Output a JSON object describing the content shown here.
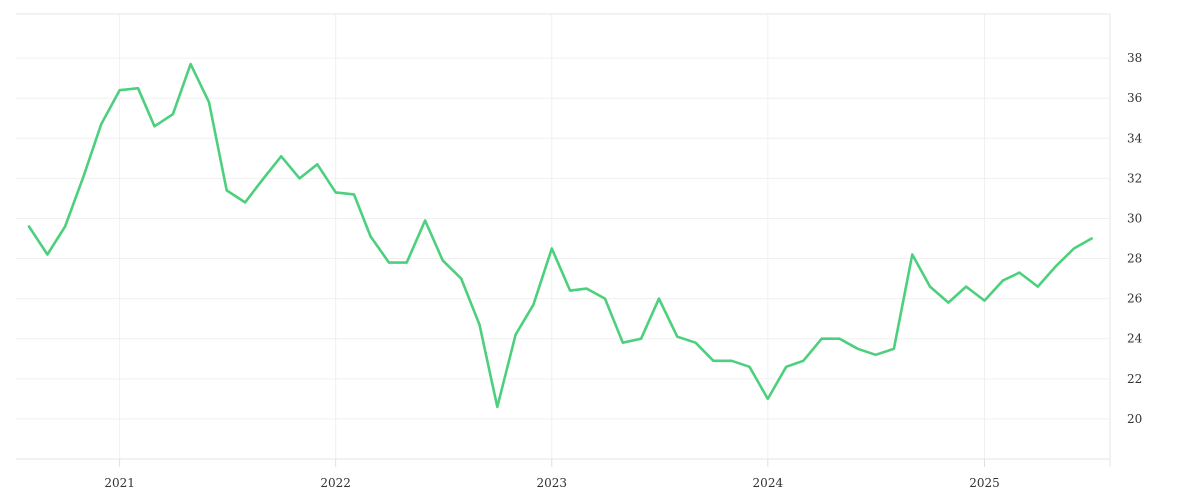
{
  "chart_data": {
    "type": "line",
    "title": "",
    "xlabel": "",
    "ylabel": "",
    "y_axis_side": "right",
    "grid": true,
    "legend": "none",
    "line_color": "#4cd07d",
    "x_tick_labels": [
      "2021",
      "2022",
      "2023",
      "2024",
      "2025"
    ],
    "y_tick_labels": [
      "20",
      "22",
      "24",
      "26",
      "28",
      "30",
      "32",
      "34",
      "36",
      "38"
    ],
    "ylim": [
      18.0,
      40.2
    ],
    "xlim": [
      "2020-07-10",
      "2025-08-01"
    ],
    "series": [
      {
        "x": [
          "2020-08-01",
          "2020-09-01",
          "2020-10-01",
          "2020-11-01",
          "2020-12-01",
          "2021-01-01",
          "2021-02-01",
          "2021-03-01",
          "2021-04-01",
          "2021-05-01",
          "2021-06-01",
          "2021-07-01",
          "2021-08-01",
          "2021-09-01",
          "2021-10-01",
          "2021-11-01",
          "2021-12-01",
          "2022-01-01",
          "2022-02-01",
          "2022-03-01",
          "2022-04-01",
          "2022-05-01",
          "2022-06-01",
          "2022-07-01",
          "2022-08-01",
          "2022-09-01",
          "2022-10-01",
          "2022-11-01",
          "2022-12-01",
          "2023-01-01",
          "2023-02-01",
          "2023-03-01",
          "2023-04-01",
          "2023-05-01",
          "2023-06-01",
          "2023-07-01",
          "2023-08-01",
          "2023-09-01",
          "2023-10-01",
          "2023-11-01",
          "2023-12-01",
          "2024-01-01",
          "2024-02-01",
          "2024-03-01",
          "2024-04-01",
          "2024-05-01",
          "2024-06-01",
          "2024-07-01",
          "2024-08-01",
          "2024-09-01",
          "2024-10-01",
          "2024-11-01",
          "2024-12-01",
          "2025-01-01",
          "2025-02-01",
          "2025-03-01",
          "2025-04-01",
          "2025-05-01",
          "2025-06-01",
          "2025-07-01"
        ],
        "y": [
          29.6,
          28.2,
          29.6,
          32.1,
          34.7,
          36.4,
          36.5,
          34.6,
          35.2,
          37.7,
          35.8,
          31.4,
          30.8,
          32.0,
          33.1,
          32.0,
          32.7,
          31.3,
          31.2,
          29.1,
          27.8,
          27.8,
          29.9,
          27.9,
          27.0,
          24.7,
          20.6,
          24.2,
          25.7,
          28.5,
          26.4,
          26.5,
          26.0,
          23.8,
          24.0,
          26.0,
          24.1,
          23.8,
          22.9,
          22.9,
          22.6,
          21.0,
          22.6,
          22.9,
          24.0,
          24.0,
          23.5,
          23.2,
          23.5,
          28.2,
          26.6,
          25.8,
          26.6,
          25.9,
          26.9,
          27.3,
          26.6,
          27.6,
          28.5,
          29.0
        ]
      }
    ]
  }
}
